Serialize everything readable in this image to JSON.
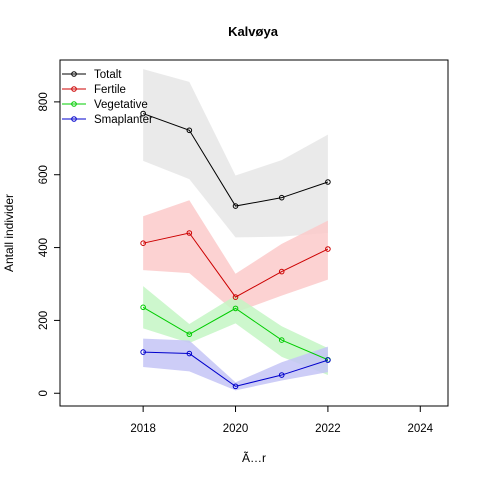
{
  "chart_data": {
    "type": "line",
    "title": "Kalvøya",
    "xlabel": "Ã…r",
    "ylabel": "Antall individer",
    "xlim": [
      2016.2,
      2024.6
    ],
    "ylim": [
      -35,
      915
    ],
    "xticks": [
      2018,
      2020,
      2022,
      2024
    ],
    "yticks": [
      0,
      200,
      400,
      600,
      800
    ],
    "grid": false,
    "legend_position": "top-left",
    "x": [
      2018,
      2019,
      2020,
      2021,
      2022
    ],
    "series": [
      {
        "name": "Totalt",
        "color": "#000000",
        "band_color": "#e6e6e6",
        "values": [
          768,
          722,
          514,
          537,
          580
        ],
        "lower": [
          638,
          588,
          428,
          430,
          440
        ],
        "upper": [
          890,
          855,
          598,
          640,
          710
        ]
      },
      {
        "name": "Fertile",
        "color": "#cc0000",
        "band_color": "#fbcaca",
        "values": [
          412,
          440,
          264,
          334,
          396
        ],
        "lower": [
          338,
          330,
          222,
          268,
          312
        ],
        "upper": [
          486,
          530,
          328,
          410,
          474
        ]
      },
      {
        "name": "Vegetative",
        "color": "#00cc00",
        "band_color": "#c4f6c4",
        "values": [
          236,
          162,
          233,
          146,
          92
        ],
        "lower": [
          178,
          138,
          192,
          100,
          50
        ],
        "upper": [
          294,
          190,
          268,
          184,
          124
        ]
      },
      {
        "name": "Smaplanter",
        "color": "#0000cc",
        "band_color": "#c4c4f6",
        "values": [
          113,
          109,
          19,
          50,
          91
        ],
        "lower": [
          72,
          60,
          8,
          35,
          58
        ],
        "upper": [
          150,
          145,
          30,
          85,
          128
        ]
      }
    ]
  }
}
